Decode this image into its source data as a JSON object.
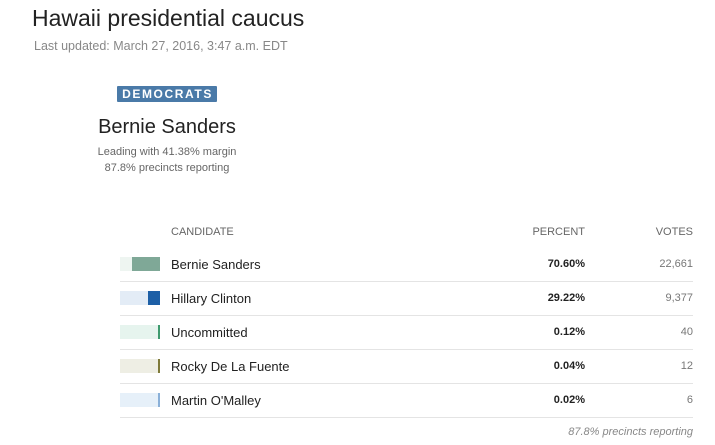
{
  "page": {
    "title": "Hawaii presidential caucus",
    "last_updated": "Last updated: March 27, 2016, 3:47 a.m. EDT"
  },
  "summary": {
    "party": "DEMOCRATS",
    "leader": "Bernie Sanders",
    "margin_text": "Leading with 41.38% margin",
    "reporting_text": "87.8% precincts reporting"
  },
  "table": {
    "headers": {
      "candidate": "CANDIDATE",
      "percent": "PERCENT",
      "votes": "VOTES"
    },
    "rows": [
      {
        "name": "Bernie Sanders",
        "percent": "70.60%",
        "votes": "22,661",
        "share": 0.706,
        "color": "#7fa897",
        "track": "#eef5f1"
      },
      {
        "name": "Hillary Clinton",
        "percent": "29.22%",
        "votes": "9,377",
        "share": 0.2922,
        "color": "#1d5fa6",
        "track": "#e3ecf6"
      },
      {
        "name": "Uncommitted",
        "percent": "0.12%",
        "votes": "40",
        "share": 0.0012,
        "color": "#3e9a6e",
        "track": "#e6f4ee"
      },
      {
        "name": "Rocky De La Fuente",
        "percent": "0.04%",
        "votes": "12",
        "share": 0.0004,
        "color": "#7f7a3a",
        "track": "#eeeee4"
      },
      {
        "name": "Martin O'Malley",
        "percent": "0.02%",
        "votes": "6",
        "share": 0.0002,
        "color": "#8ab0d8",
        "track": "#e6f0f9"
      }
    ],
    "footer": "87.8% precincts reporting"
  }
}
